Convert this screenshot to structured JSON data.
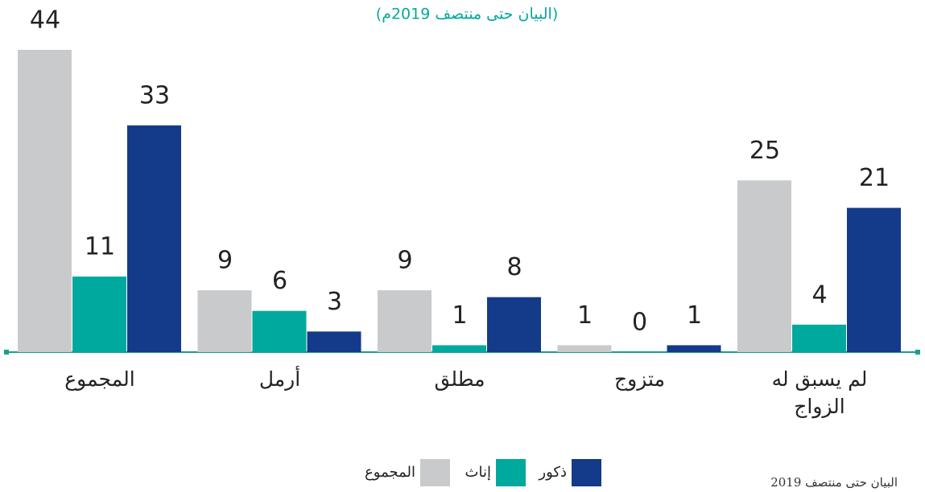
{
  "chart_data": {
    "type": "bar",
    "title": "(البيان حتى منتصف 2019م)",
    "note": "البيان حتى منتصف 2019",
    "categories": [
      "المجموع",
      "أرمل",
      "مطلق",
      "متزوج",
      "لم يسبق له الزواج"
    ],
    "series": [
      {
        "name": "المجموع",
        "color": "#c8cacc",
        "values": [
          44,
          9,
          9,
          1,
          25
        ]
      },
      {
        "name": "إناث",
        "color": "#00a99d",
        "values": [
          11,
          6,
          1,
          0,
          4
        ]
      },
      {
        "name": "ذكور",
        "color": "#143a8a",
        "values": [
          33,
          3,
          8,
          1,
          21
        ]
      }
    ],
    "ylim": [
      0,
      44
    ]
  }
}
